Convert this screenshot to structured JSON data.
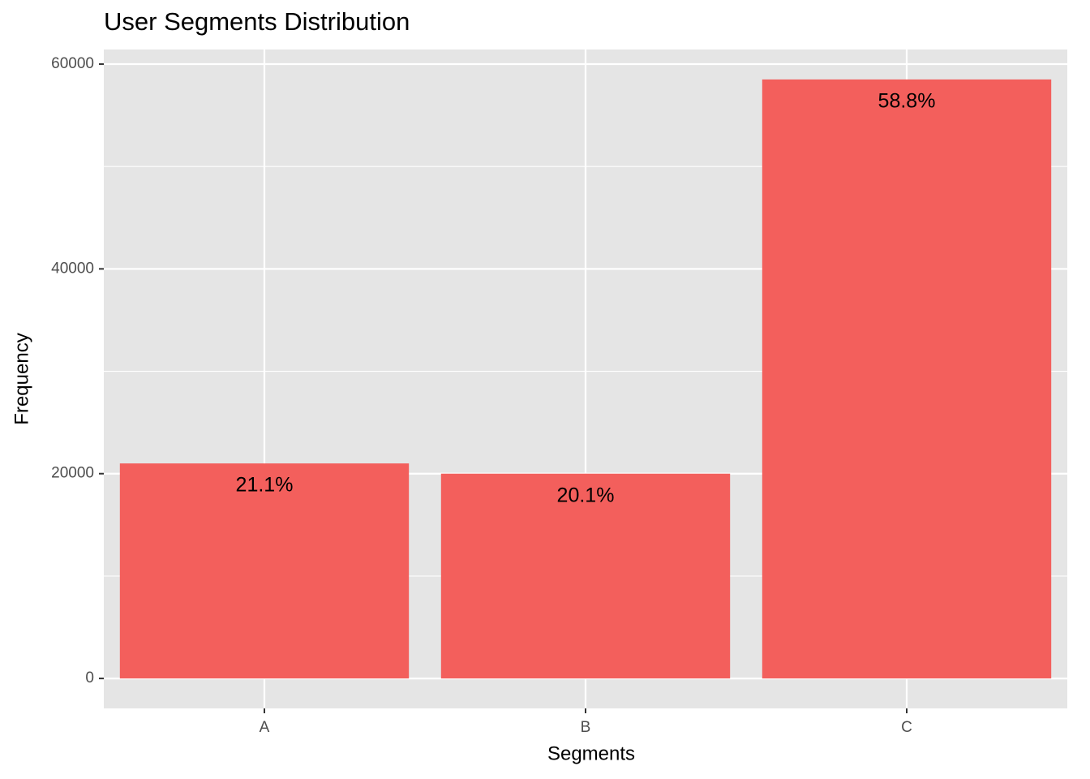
{
  "chart_data": {
    "type": "bar",
    "title": "User Segments Distribution",
    "x_label": "Segments",
    "y_label": "Frequency",
    "categories": [
      "A",
      "B",
      "C"
    ],
    "values": [
      21000,
      20000,
      58500
    ],
    "value_labels": [
      "21.1%",
      "20.1%",
      "58.8%"
    ],
    "color": "#f35f5c",
    "ylim": [
      -2925,
      61425
    ],
    "yticks": [
      0,
      20000,
      40000,
      60000
    ],
    "minor_yticks": [
      10000,
      30000,
      50000
    ],
    "grid": true
  }
}
